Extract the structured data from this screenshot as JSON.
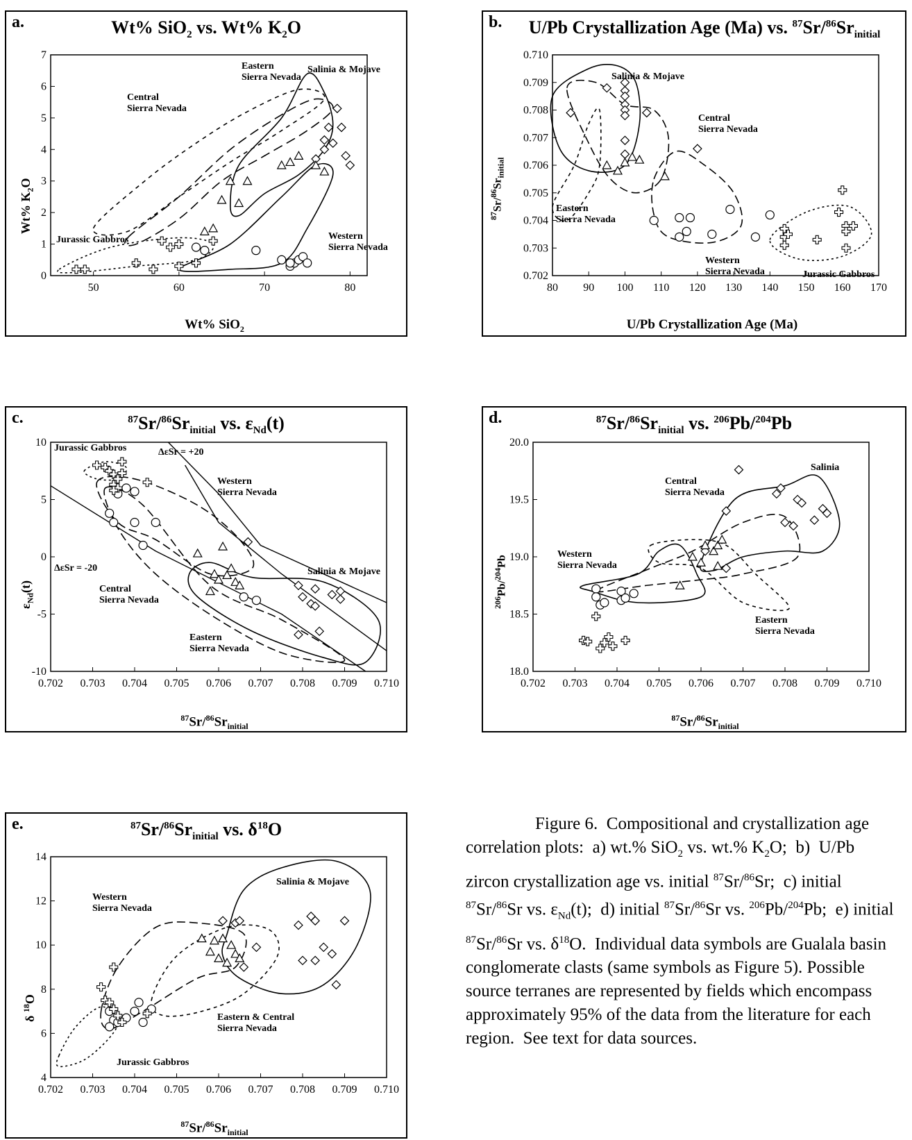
{
  "chart_data": [
    {
      "id": "a",
      "type": "scatter",
      "panel_label": "a.",
      "title": "Wt% SiO2 vs. Wt% K2O",
      "xlabel": "Wt% SiO2",
      "ylabel": "Wt% K2O",
      "xlim": [
        45,
        82
      ],
      "ylim": [
        0,
        7
      ],
      "xticks": [
        50,
        60,
        70,
        80
      ],
      "yticks": [
        0,
        1,
        2,
        3,
        4,
        5,
        6,
        7
      ],
      "series": [
        {
          "symbol": "diamond",
          "points": [
            [
              77.5,
              4.7
            ],
            [
              78.5,
              5.3
            ],
            [
              79,
              4.7
            ],
            [
              77,
              4.3
            ],
            [
              78,
              4.2
            ],
            [
              79.5,
              3.8
            ],
            [
              80,
              3.5
            ],
            [
              77,
              4.0
            ],
            [
              76,
              3.7
            ]
          ]
        },
        {
          "symbol": "triangle",
          "points": [
            [
              63,
              1.4
            ],
            [
              64,
              1.5
            ],
            [
              65,
              2.4
            ],
            [
              67,
              2.3
            ],
            [
              66,
              3.0
            ],
            [
              68,
              3.0
            ],
            [
              72,
              3.5
            ],
            [
              73,
              3.6
            ],
            [
              74,
              3.8
            ],
            [
              76,
              3.5
            ],
            [
              77,
              3.3
            ]
          ]
        },
        {
          "symbol": "circle",
          "points": [
            [
              62,
              0.9
            ],
            [
              63,
              0.8
            ],
            [
              69,
              0.8
            ],
            [
              72,
              0.5
            ],
            [
              73,
              0.3
            ],
            [
              73.5,
              0.4
            ],
            [
              74,
              0.5
            ],
            [
              74.5,
              0.6
            ],
            [
              75,
              0.4
            ],
            [
              73,
              0.4
            ]
          ]
        },
        {
          "symbol": "cross",
          "points": [
            [
              48,
              0.2
            ],
            [
              49,
              0.2
            ],
            [
              55,
              0.4
            ],
            [
              57,
              0.2
            ],
            [
              58,
              1.1
            ],
            [
              60,
              1.0
            ],
            [
              60,
              0.3
            ],
            [
              62,
              0.4
            ],
            [
              64,
              1.1
            ],
            [
              59,
              0.9
            ]
          ]
        }
      ],
      "annotations": [
        "Eastern Sierra Nevada",
        "Salinia & Mojave",
        "Central Sierra Nevada",
        "Jurassic Gabbros",
        "Western Sierra Nevada"
      ]
    },
    {
      "id": "b",
      "type": "scatter",
      "panel_label": "b.",
      "title": "U/Pb Crystallization Age (Ma) vs. 87Sr/86Sr initial",
      "xlabel": "U/Pb Crystallization Age (Ma)",
      "ylabel": "87Sr/86Sr initial",
      "xlim": [
        80,
        170
      ],
      "ylim": [
        0.702,
        0.71
      ],
      "xticks": [
        80,
        90,
        100,
        110,
        120,
        130,
        140,
        150,
        160,
        170
      ],
      "yticks": [
        0.702,
        0.703,
        0.704,
        0.705,
        0.706,
        0.707,
        0.708,
        0.709,
        0.71
      ],
      "series": [
        {
          "symbol": "diamond",
          "points": [
            [
              85,
              0.7079
            ],
            [
              95,
              0.7088
            ],
            [
              100,
              0.709
            ],
            [
              100,
              0.7087
            ],
            [
              100,
              0.7085
            ],
            [
              100,
              0.7082
            ],
            [
              100,
              0.708
            ],
            [
              100,
              0.7078
            ],
            [
              100,
              0.7069
            ],
            [
              100,
              0.7064
            ],
            [
              106,
              0.7079
            ],
            [
              120,
              0.7066
            ]
          ]
        },
        {
          "symbol": "triangle",
          "points": [
            [
              95,
              0.706
            ],
            [
              98,
              0.7058
            ],
            [
              100,
              0.7061
            ],
            [
              102,
              0.7063
            ],
            [
              104,
              0.7062
            ],
            [
              111,
              0.7056
            ]
          ]
        },
        {
          "symbol": "circle",
          "points": [
            [
              108,
              0.704
            ],
            [
              115,
              0.7041
            ],
            [
              115,
              0.7034
            ],
            [
              117,
              0.7036
            ],
            [
              118,
              0.7041
            ],
            [
              124,
              0.7035
            ],
            [
              129,
              0.7044
            ],
            [
              136,
              0.7034
            ],
            [
              140,
              0.7042
            ]
          ]
        },
        {
          "symbol": "cross",
          "points": [
            [
              144,
              0.7037
            ],
            [
              144,
              0.7034
            ],
            [
              144,
              0.7031
            ],
            [
              145,
              0.7035
            ],
            [
              160,
              0.7051
            ],
            [
              159,
              0.7043
            ],
            [
              161,
              0.7038
            ],
            [
              163,
              0.7038
            ],
            [
              161,
              0.7036
            ],
            [
              161,
              0.703
            ],
            [
              153,
              0.7033
            ]
          ]
        }
      ],
      "annotations": [
        "Salinia & Mojave",
        "Central Sierra Nevada",
        "Eastern Sierra Nevada",
        "Western Sierra Nevada",
        "Jurassic Gabbros"
      ]
    },
    {
      "id": "c",
      "type": "scatter",
      "panel_label": "c.",
      "title": "87Sr/86Sr initial vs. εNd(t)",
      "xlabel": "87Sr/86Sr initial",
      "ylabel": "εNd(t)",
      "xlim": [
        0.702,
        0.71
      ],
      "ylim": [
        -10,
        10
      ],
      "xticks": [
        0.702,
        0.703,
        0.704,
        0.705,
        0.706,
        0.707,
        0.708,
        0.709,
        0.71
      ],
      "yticks": [
        -10,
        -5,
        0,
        5,
        10
      ],
      "series": [
        {
          "symbol": "diamond",
          "points": [
            [
              0.7067,
              1.3
            ],
            [
              0.7079,
              -2.5
            ],
            [
              0.7083,
              -2.8
            ],
            [
              0.7089,
              -3.0
            ],
            [
              0.708,
              -3.5
            ],
            [
              0.7082,
              -4.1
            ],
            [
              0.7083,
              -4.3
            ],
            [
              0.7087,
              -3.3
            ],
            [
              0.7089,
              -3.7
            ],
            [
              0.7084,
              -6.5
            ],
            [
              0.7079,
              -6.8
            ]
          ]
        },
        {
          "symbol": "triangle",
          "points": [
            [
              0.7055,
              0.3
            ],
            [
              0.7059,
              -1.5
            ],
            [
              0.706,
              -2.0
            ],
            [
              0.7062,
              -1.6
            ],
            [
              0.7063,
              -1.0
            ],
            [
              0.7064,
              -2.2
            ],
            [
              0.7065,
              -2.5
            ],
            [
              0.7058,
              -3.0
            ],
            [
              0.7061,
              0.9
            ]
          ]
        },
        {
          "symbol": "circle",
          "points": [
            [
              0.7034,
              3.8
            ],
            [
              0.7035,
              3.0
            ],
            [
              0.7036,
              5.5
            ],
            [
              0.7038,
              6.0
            ],
            [
              0.704,
              5.7
            ],
            [
              0.704,
              3.0
            ],
            [
              0.7042,
              1.0
            ],
            [
              0.7045,
              3.0
            ],
            [
              0.7066,
              -3.5
            ],
            [
              0.7069,
              -3.8
            ]
          ]
        },
        {
          "symbol": "cross",
          "points": [
            [
              0.7031,
              8.0
            ],
            [
              0.7033,
              7.8
            ],
            [
              0.7034,
              7.5
            ],
            [
              0.7035,
              7.2
            ],
            [
              0.7036,
              6.8
            ],
            [
              0.7035,
              6.3
            ],
            [
              0.7036,
              6.0
            ],
            [
              0.7037,
              7.3
            ],
            [
              0.7037,
              8.3
            ],
            [
              0.7043,
              6.5
            ],
            [
              0.7035,
              5.8
            ]
          ]
        }
      ],
      "annotations": [
        "Jurassic Gabbros",
        "ΔεSr = +20",
        "ΔεSr = -20",
        "Western Sierra Nevada",
        "Salinia & Mojave",
        "Central Sierra Nevada",
        "Eastern Sierra Nevada"
      ]
    },
    {
      "id": "d",
      "type": "scatter",
      "panel_label": "d.",
      "title": "87Sr/86Sr initial vs. 206Pb/204Pb",
      "xlabel": "87Sr/86Sr initial",
      "ylabel": "206Pb/204Pb",
      "xlim": [
        0.702,
        0.71
      ],
      "ylim": [
        18.0,
        20.0
      ],
      "xticks": [
        0.702,
        0.703,
        0.704,
        0.705,
        0.706,
        0.707,
        0.708,
        0.709,
        0.71
      ],
      "yticks": [
        18.0,
        18.5,
        19.0,
        19.5,
        20.0
      ],
      "series": [
        {
          "symbol": "diamond",
          "points": [
            [
              0.7069,
              19.76
            ],
            [
              0.7079,
              19.6
            ],
            [
              0.7078,
              19.55
            ],
            [
              0.7083,
              19.5
            ],
            [
              0.7084,
              19.47
            ],
            [
              0.7089,
              19.42
            ],
            [
              0.709,
              19.38
            ],
            [
              0.7087,
              19.32
            ],
            [
              0.708,
              19.3
            ],
            [
              0.7082,
              19.27
            ],
            [
              0.7066,
              19.4
            ],
            [
              0.7066,
              18.9
            ],
            [
              0.7061,
              19.05
            ]
          ]
        },
        {
          "symbol": "triangle",
          "points": [
            [
              0.7055,
              18.75
            ],
            [
              0.7058,
              19.0
            ],
            [
              0.706,
              18.95
            ],
            [
              0.7061,
              19.1
            ],
            [
              0.7063,
              19.05
            ],
            [
              0.7064,
              19.1
            ],
            [
              0.7065,
              19.15
            ],
            [
              0.7064,
              18.92
            ]
          ]
        },
        {
          "symbol": "circle",
          "points": [
            [
              0.7035,
              18.72
            ],
            [
              0.7035,
              18.65
            ],
            [
              0.7036,
              18.58
            ],
            [
              0.7037,
              18.6
            ],
            [
              0.7041,
              18.7
            ],
            [
              0.7041,
              18.62
            ],
            [
              0.7042,
              18.64
            ],
            [
              0.7044,
              18.68
            ]
          ]
        },
        {
          "symbol": "cross",
          "points": [
            [
              0.7032,
              18.27
            ],
            [
              0.7033,
              18.26
            ],
            [
              0.7036,
              18.2
            ],
            [
              0.7037,
              18.25
            ],
            [
              0.7038,
              18.3
            ],
            [
              0.7039,
              18.22
            ],
            [
              0.7042,
              18.27
            ],
            [
              0.7035,
              18.48
            ]
          ]
        }
      ],
      "annotations": [
        "Salinia",
        "Central Sierra Nevada",
        "Western Sierra Nevada",
        "Eastern Sierra Nevada"
      ]
    },
    {
      "id": "e",
      "type": "scatter",
      "panel_label": "e.",
      "title": "87Sr/86Sr initial vs. δ18O",
      "xlabel": "87Sr/86Sr initial",
      "ylabel": "δ 18O",
      "xlim": [
        0.702,
        0.71
      ],
      "ylim": [
        4,
        14
      ],
      "xticks": [
        0.702,
        0.703,
        0.704,
        0.705,
        0.706,
        0.707,
        0.708,
        0.709,
        0.71
      ],
      "yticks": [
        4,
        6,
        8,
        10,
        12,
        14
      ],
      "series": [
        {
          "symbol": "diamond",
          "points": [
            [
              0.7061,
              11.1
            ],
            [
              0.7064,
              11.0
            ],
            [
              0.7065,
              11.1
            ],
            [
              0.7079,
              10.9
            ],
            [
              0.7082,
              11.3
            ],
            [
              0.7083,
              11.1
            ],
            [
              0.7085,
              9.9
            ],
            [
              0.709,
              11.1
            ],
            [
              0.7069,
              9.9
            ],
            [
              0.708,
              9.3
            ],
            [
              0.7083,
              9.3
            ],
            [
              0.7087,
              9.6
            ],
            [
              0.7088,
              8.2
            ],
            [
              0.7066,
              9.0
            ]
          ]
        },
        {
          "symbol": "triangle",
          "points": [
            [
              0.7056,
              10.3
            ],
            [
              0.7059,
              10.2
            ],
            [
              0.7061,
              10.3
            ],
            [
              0.7063,
              10.0
            ],
            [
              0.7058,
              9.7
            ],
            [
              0.706,
              9.4
            ],
            [
              0.7062,
              9.2
            ],
            [
              0.7064,
              9.6
            ],
            [
              0.7065,
              9.4
            ]
          ]
        },
        {
          "symbol": "circle",
          "points": [
            [
              0.7034,
              7.0
            ],
            [
              0.7035,
              6.6
            ],
            [
              0.7034,
              6.3
            ],
            [
              0.7036,
              6.5
            ],
            [
              0.7038,
              6.7
            ],
            [
              0.704,
              7.0
            ],
            [
              0.7041,
              7.4
            ],
            [
              0.7042,
              6.5
            ],
            [
              0.7044,
              7.1
            ]
          ]
        },
        {
          "symbol": "cross",
          "points": [
            [
              0.7032,
              8.1
            ],
            [
              0.7033,
              7.5
            ],
            [
              0.7034,
              7.4
            ],
            [
              0.7035,
              7.1
            ],
            [
              0.7036,
              6.8
            ],
            [
              0.7037,
              6.5
            ],
            [
              0.7035,
              9.0
            ],
            [
              0.7043,
              6.9
            ]
          ]
        }
      ],
      "annotations": [
        "Western Sierra Nevada",
        "Salinia & Mojave",
        "Eastern & Central Sierra Nevada",
        "Jurassic Gabbros"
      ]
    }
  ],
  "caption": "Figure 6. Compositional and crystallization age correlation plots: a) wt.% SiO2 vs. wt.% K2O; b) U/Pb zircon crystallization age vs. initial 87Sr/86Sr; c) initial 87Sr/86Sr vs. εNd(t); d) initial 87Sr/86Sr vs. 206Pb/204Pb; e) initial 87Sr/86Sr vs. δ18O. Individual data symbols are Gualala basin conglomerate clasts (same symbols as Figure 5). Possible source terranes are represented by fields which encompass approximately 95% of the data from the literature for each region. See text for data sources."
}
